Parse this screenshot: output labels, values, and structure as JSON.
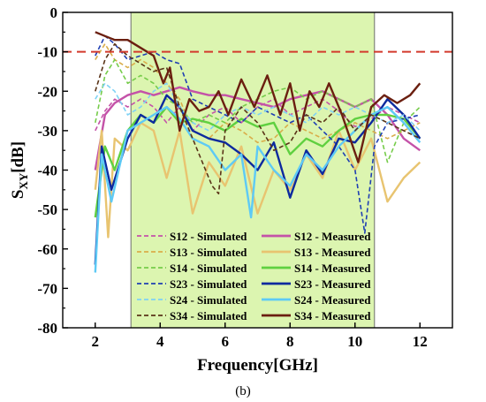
{
  "chart_data": {
    "type": "line",
    "title": "",
    "caption": "(b)",
    "xlabel": "Frequency[GHz]",
    "ylabel": "S",
    "ylabel_subscript": "XY",
    "ylabel_unit": "[dB]",
    "xlim": [
      1,
      13
    ],
    "ylim": [
      -80,
      0
    ],
    "xticks": [
      2,
      4,
      6,
      8,
      10,
      12
    ],
    "yticks": [
      0,
      -10,
      -20,
      -30,
      -40,
      -50,
      -60,
      -70,
      -80
    ],
    "grid": false,
    "legend_position": "bottom-center",
    "band": {
      "x": [
        3.1,
        10.6
      ],
      "color": "#dcf5b0"
    },
    "threshold": {
      "y": -10,
      "color": "#d33a2c",
      "style": "dashed"
    },
    "series": [
      {
        "name": "S12 - Simulated",
        "color": "#c452a8",
        "style": "dashed",
        "x": [
          2,
          2.3,
          2.6,
          3,
          3.4,
          3.8,
          4.2,
          4.6,
          5,
          5.5,
          6,
          6.5,
          7,
          7.5,
          8,
          8.5,
          9,
          9.5,
          10,
          10.5,
          11,
          11.5,
          12
        ],
        "y": [
          -30,
          -25,
          -22,
          -24,
          -22,
          -24,
          -28,
          -24,
          -30,
          -26,
          -24,
          -28,
          -24,
          -22,
          -26,
          -24,
          -22,
          -25,
          -29,
          -27,
          -24,
          -26,
          -28
        ]
      },
      {
        "name": "S12 - Measured",
        "color": "#c452a8",
        "style": "solid",
        "x": [
          2,
          2.3,
          2.6,
          3,
          3.4,
          3.8,
          4.2,
          4.6,
          5,
          5.5,
          6,
          6.5,
          7,
          7.5,
          8,
          8.5,
          9,
          9.5,
          10,
          10.5,
          11,
          11.5,
          12
        ],
        "y": [
          -40,
          -26,
          -23,
          -21,
          -20,
          -21,
          -20,
          -19,
          -20,
          -21,
          -21,
          -22,
          -23,
          -24,
          -22,
          -21,
          -20,
          -22,
          -24,
          -22,
          -26,
          -32,
          -35
        ]
      },
      {
        "name": "S13 - Simulated",
        "color": "#d9ad4a",
        "style": "dashed",
        "x": [
          2,
          2.3,
          2.6,
          3,
          3.4,
          3.8,
          4.2,
          4.6,
          5,
          5.5,
          6,
          6.5,
          7,
          7.5,
          8,
          8.5,
          9,
          9.5,
          10,
          10.5,
          11,
          11.5,
          12
        ],
        "y": [
          -12,
          -8,
          -12,
          -14,
          -12,
          -14,
          -18,
          -22,
          -30,
          -32,
          -28,
          -30,
          -33,
          -32,
          -28,
          -30,
          -32,
          -30,
          -28,
          -30,
          -32,
          -30,
          -28
        ]
      },
      {
        "name": "S13 - Measured",
        "color": "#e8c470",
        "style": "solid",
        "x": [
          2,
          2.2,
          2.4,
          2.6,
          3,
          3.4,
          3.8,
          4.2,
          4.6,
          5,
          5.5,
          6,
          6.5,
          7,
          7.5,
          8,
          8.5,
          9,
          9.5,
          10,
          10.5,
          11,
          11.5,
          12
        ],
        "y": [
          -45,
          -30,
          -57,
          -32,
          -35,
          -28,
          -30,
          -42,
          -30,
          -51,
          -38,
          -44,
          -34,
          -51,
          -40,
          -45,
          -36,
          -42,
          -30,
          -40,
          -32,
          -48,
          -42,
          -38
        ]
      },
      {
        "name": "S14 - Simulated",
        "color": "#76cc4a",
        "style": "dashed",
        "x": [
          2,
          2.3,
          2.6,
          3,
          3.4,
          3.8,
          4.2,
          4.6,
          5,
          5.5,
          6,
          6.5,
          7,
          7.5,
          8,
          8.5,
          9,
          9.5,
          10,
          10.5,
          11,
          11.5,
          12
        ],
        "y": [
          -28,
          -16,
          -12,
          -18,
          -16,
          -18,
          -22,
          -24,
          -28,
          -26,
          -28,
          -24,
          -22,
          -20,
          -19,
          -22,
          -20,
          -22,
          -24,
          -22,
          -38,
          -28,
          -24
        ]
      },
      {
        "name": "S14 - Measured",
        "color": "#5fd040",
        "style": "solid",
        "x": [
          2,
          2.3,
          2.6,
          3,
          3.4,
          3.8,
          4.2,
          4.6,
          5,
          5.5,
          6,
          6.5,
          7,
          7.5,
          8,
          8.5,
          9,
          9.5,
          10,
          10.5,
          11,
          11.5,
          12
        ],
        "y": [
          -52,
          -34,
          -40,
          -30,
          -26,
          -28,
          -24,
          -28,
          -27,
          -28,
          -30,
          -27,
          -29,
          -28,
          -36,
          -32,
          -34,
          -30,
          -27,
          -26,
          -26,
          -27,
          -32
        ]
      },
      {
        "name": "S23 - Simulated",
        "color": "#1f3fb3",
        "style": "dashed",
        "x": [
          2,
          2.3,
          2.6,
          3,
          3.4,
          3.8,
          4.2,
          4.6,
          5,
          5.5,
          6,
          6.5,
          7,
          7.5,
          8,
          8.5,
          9,
          9.5,
          10,
          10.3,
          10.6,
          11,
          11.5,
          12
        ],
        "y": [
          -11,
          -6,
          -8,
          -12,
          -11,
          -10,
          -12,
          -13,
          -22,
          -24,
          -26,
          -28,
          -24,
          -26,
          -28,
          -26,
          -30,
          -34,
          -40,
          -56,
          -34,
          -28,
          -27,
          -26
        ]
      },
      {
        "name": "S23 - Measured",
        "color": "#0d2a9e",
        "style": "solid",
        "x": [
          2,
          2.2,
          2.5,
          3,
          3.4,
          3.8,
          4.2,
          4.6,
          5,
          5.5,
          6,
          6.5,
          7,
          7.5,
          8,
          8.5,
          9,
          9.5,
          10,
          10.5,
          11,
          11.5,
          12
        ],
        "y": [
          -64,
          -34,
          -45,
          -32,
          -26,
          -28,
          -21,
          -24,
          -30,
          -32,
          -33,
          -36,
          -40,
          -33,
          -47,
          -35,
          -41,
          -32,
          -33,
          -28,
          -22,
          -26,
          -32
        ]
      },
      {
        "name": "S24 - Simulated",
        "color": "#7fd2f5",
        "style": "dashed",
        "x": [
          2,
          2.3,
          2.6,
          3,
          3.4,
          3.8,
          4.2,
          4.6,
          5,
          5.5,
          6,
          6.5,
          7,
          7.5,
          8,
          8.5,
          9,
          9.5,
          10,
          10.5,
          11,
          11.5,
          12
        ],
        "y": [
          -22,
          -18,
          -20,
          -26,
          -24,
          -20,
          -18,
          -24,
          -28,
          -30,
          -26,
          -24,
          -26,
          -24,
          -26,
          -28,
          -24,
          -26,
          -24,
          -26,
          -28,
          -26,
          -30
        ]
      },
      {
        "name": "S24 - Measured",
        "color": "#5ecaf5",
        "style": "solid",
        "x": [
          2,
          2.2,
          2.5,
          3,
          3.4,
          3.8,
          4.2,
          4.6,
          5,
          5.5,
          6,
          6.5,
          6.8,
          7,
          7.5,
          8,
          8.5,
          9,
          9.5,
          10,
          10.5,
          11,
          11.5,
          12
        ],
        "y": [
          -66,
          -36,
          -48,
          -30,
          -28,
          -26,
          -24,
          -27,
          -32,
          -34,
          -40,
          -36,
          -52,
          -34,
          -40,
          -44,
          -36,
          -40,
          -34,
          -30,
          -26,
          -24,
          -28,
          -33
        ]
      },
      {
        "name": "S34 - Simulated",
        "color": "#5a3418",
        "style": "dashed",
        "x": [
          2,
          2.3,
          2.6,
          3,
          3.4,
          3.8,
          4.2,
          4.6,
          5,
          5.3,
          5.6,
          5.8,
          6,
          6.5,
          7,
          7.5,
          8,
          8.5,
          9,
          9.5,
          10,
          10.5,
          11,
          11.5,
          12
        ],
        "y": [
          -20,
          -12,
          -8,
          -11,
          -13,
          -15,
          -14,
          -24,
          -32,
          -38,
          -44,
          -46,
          -30,
          -24,
          -28,
          -35,
          -33,
          -26,
          -28,
          -24,
          -30,
          -26,
          -28,
          -30,
          -32
        ]
      },
      {
        "name": "S34 - Measured",
        "color": "#6b1f10",
        "style": "solid",
        "x": [
          2,
          2.3,
          2.6,
          3,
          3.4,
          3.8,
          4.1,
          4.3,
          4.6,
          4.9,
          5.2,
          5.5,
          5.8,
          6.1,
          6.5,
          6.9,
          7.3,
          7.7,
          8,
          8.3,
          8.6,
          8.9,
          9.2,
          9.6,
          10.1,
          10.5,
          10.9,
          11.3,
          11.7,
          12
        ],
        "y": [
          -5,
          -6,
          -7,
          -7,
          -9,
          -11,
          -18,
          -14,
          -30,
          -22,
          -25,
          -24,
          -20,
          -26,
          -17,
          -24,
          -16,
          -26,
          -18,
          -30,
          -20,
          -24,
          -18,
          -26,
          -38,
          -24,
          -21,
          -23,
          -21,
          -18
        ]
      }
    ]
  }
}
